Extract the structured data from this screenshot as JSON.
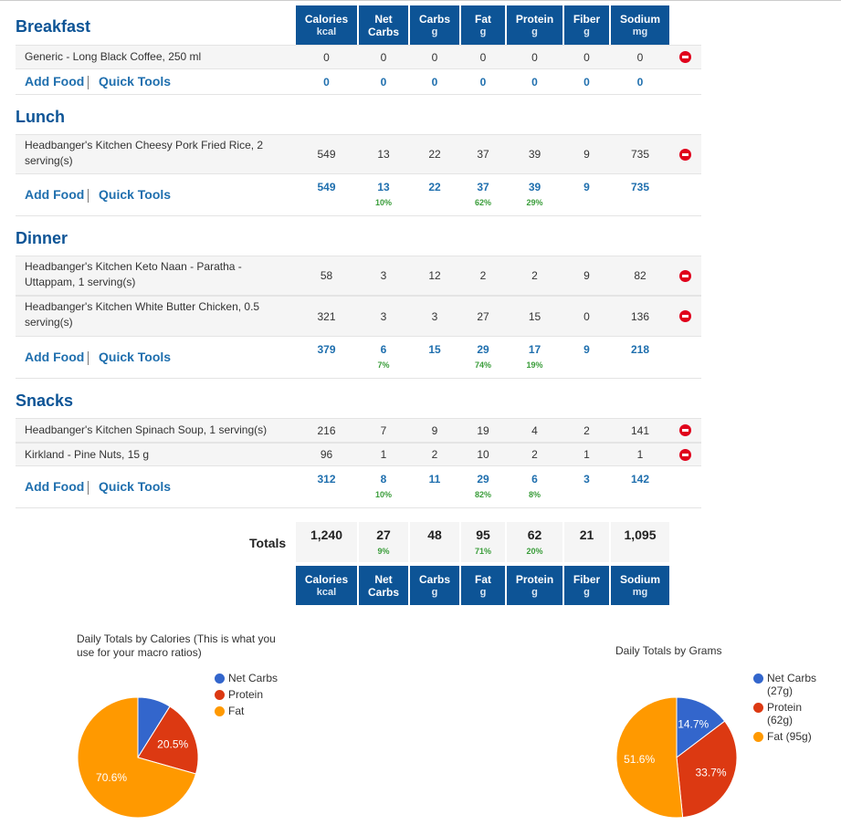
{
  "headers": [
    {
      "line1": "Calories",
      "line2": "kcal"
    },
    {
      "line1": "Net",
      "line2": "Carbs"
    },
    {
      "line1": "Carbs",
      "line2": "g"
    },
    {
      "line1": "Fat",
      "line2": "g"
    },
    {
      "line1": "Protein",
      "line2": "g"
    },
    {
      "line1": "Fiber",
      "line2": "g"
    },
    {
      "line1": "Sodium",
      "line2": "mg"
    }
  ],
  "links": {
    "add_food": "Add Food",
    "quick_tools": "Quick Tools"
  },
  "meals": [
    {
      "title": "Breakfast",
      "foods": [
        {
          "name_l1": "Generic - Long Black Coffee, 250 ml",
          "name_l2": "",
          "values": [
            "0",
            "0",
            "0",
            "0",
            "0",
            "0",
            "0"
          ]
        }
      ],
      "totals": [
        "0",
        "0",
        "0",
        "0",
        "0",
        "0",
        "0"
      ],
      "pcts": {
        "net": "",
        "fat": "",
        "protein": ""
      }
    },
    {
      "title": "Lunch",
      "foods": [
        {
          "name_l1": "Headbanger's Kitchen Cheesy Pork Fried Rice, 2",
          "name_l2": "serving(s)",
          "values": [
            "549",
            "13",
            "22",
            "37",
            "39",
            "9",
            "735"
          ]
        }
      ],
      "totals": [
        "549",
        "13",
        "22",
        "37",
        "39",
        "9",
        "735"
      ],
      "pcts": {
        "net": "10%",
        "fat": "62%",
        "protein": "29%"
      }
    },
    {
      "title": "Dinner",
      "foods": [
        {
          "name_l1": "Headbanger's Kitchen Keto Naan - Paratha -",
          "name_l2": "Uttappam, 1 serving(s)",
          "values": [
            "58",
            "3",
            "12",
            "2",
            "2",
            "9",
            "82"
          ]
        },
        {
          "name_l1": "Headbanger's Kitchen White Butter Chicken, 0.5",
          "name_l2": "serving(s)",
          "values": [
            "321",
            "3",
            "3",
            "27",
            "15",
            "0",
            "136"
          ]
        }
      ],
      "totals": [
        "379",
        "6",
        "15",
        "29",
        "17",
        "9",
        "218"
      ],
      "pcts": {
        "net": "7%",
        "fat": "74%",
        "protein": "19%"
      }
    },
    {
      "title": "Snacks",
      "foods": [
        {
          "name_l1": "Headbanger's Kitchen Spinach Soup, 1 serving(s)",
          "name_l2": "",
          "values": [
            "216",
            "7",
            "9",
            "19",
            "4",
            "2",
            "141"
          ]
        },
        {
          "name_l1": "Kirkland - Pine Nuts, 15 g",
          "name_l2": "",
          "values": [
            "96",
            "1",
            "2",
            "10",
            "2",
            "1",
            "1"
          ]
        }
      ],
      "totals": [
        "312",
        "8",
        "11",
        "29",
        "6",
        "3",
        "142"
      ],
      "pcts": {
        "net": "10%",
        "fat": "82%",
        "protein": "8%"
      }
    }
  ],
  "grand_totals": {
    "label": "Totals",
    "values": [
      "1,240",
      "27",
      "48",
      "95",
      "62",
      "21",
      "1,095"
    ],
    "pcts": {
      "net": "9%",
      "fat": "71%",
      "protein": "20%"
    }
  },
  "colors": {
    "header": "#0d5496",
    "link": "#1f6fae",
    "pct": "#3a9d3a",
    "net_carbs": "#3366cc",
    "protein": "#dc3912",
    "fat": "#ff9900",
    "remove": "#e0001b"
  },
  "chart_data": [
    {
      "type": "pie",
      "title": "Daily Totals by Calories (This is what you use for your macro ratios)",
      "categories": [
        "Net Carbs",
        "Protein",
        "Fat"
      ],
      "values": [
        8.9,
        20.5,
        70.6
      ],
      "labels": [
        "",
        "20.5%",
        "70.6%"
      ],
      "legend": [
        "Net Carbs",
        "Protein",
        "Fat"
      ],
      "legend_position": "right"
    },
    {
      "type": "pie",
      "title": "Daily Totals by Grams",
      "categories": [
        "Net Carbs",
        "Protein",
        "Fat"
      ],
      "values": [
        14.7,
        33.7,
        51.6
      ],
      "labels": [
        "14.7%",
        "33.7%",
        "51.6%"
      ],
      "legend": [
        "Net Carbs",
        "(27g)",
        "Protein",
        "(62g)",
        "Fat (95g)"
      ],
      "legend_position": "right"
    }
  ]
}
